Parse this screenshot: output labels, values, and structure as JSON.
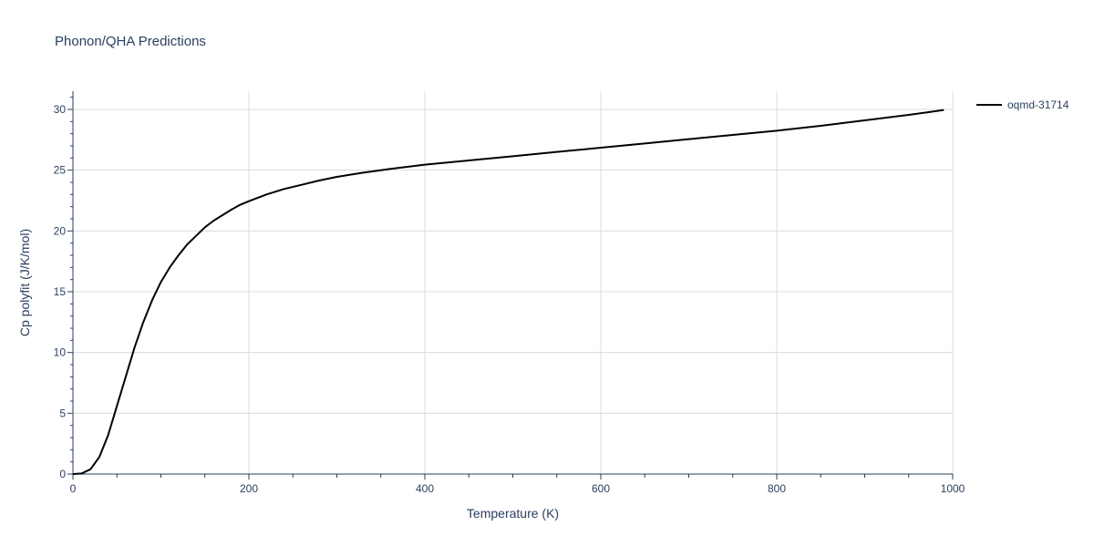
{
  "chart_data": {
    "type": "line",
    "title": "Phonon/QHA Predictions",
    "xlabel": "Temperature (K)",
    "ylabel": "Cp polyfit (J/K/mol)",
    "xlim": [
      0,
      1000
    ],
    "ylim": [
      0,
      31.5
    ],
    "x_ticks": [
      0,
      200,
      400,
      600,
      800,
      1000
    ],
    "y_ticks": [
      0,
      5,
      10,
      15,
      20,
      25,
      30
    ],
    "grid": true,
    "legend_position": "top-right",
    "series": [
      {
        "name": "oqmd-31714",
        "color": "#000000",
        "x": [
          0,
          10,
          20,
          30,
          40,
          50,
          60,
          70,
          80,
          90,
          100,
          110,
          120,
          130,
          140,
          150,
          160,
          170,
          180,
          190,
          200,
          220,
          240,
          260,
          280,
          300,
          330,
          360,
          400,
          450,
          500,
          550,
          600,
          650,
          700,
          750,
          800,
          850,
          900,
          950,
          990
        ],
        "y": [
          0,
          0.05,
          0.4,
          1.4,
          3.2,
          5.6,
          8.0,
          10.4,
          12.5,
          14.3,
          15.8,
          17.0,
          18.0,
          18.9,
          19.6,
          20.3,
          20.85,
          21.3,
          21.75,
          22.15,
          22.45,
          23.0,
          23.45,
          23.8,
          24.15,
          24.45,
          24.8,
          25.1,
          25.45,
          25.8,
          26.15,
          26.5,
          26.85,
          27.2,
          27.55,
          27.9,
          28.25,
          28.65,
          29.1,
          29.55,
          29.95
        ]
      }
    ]
  }
}
